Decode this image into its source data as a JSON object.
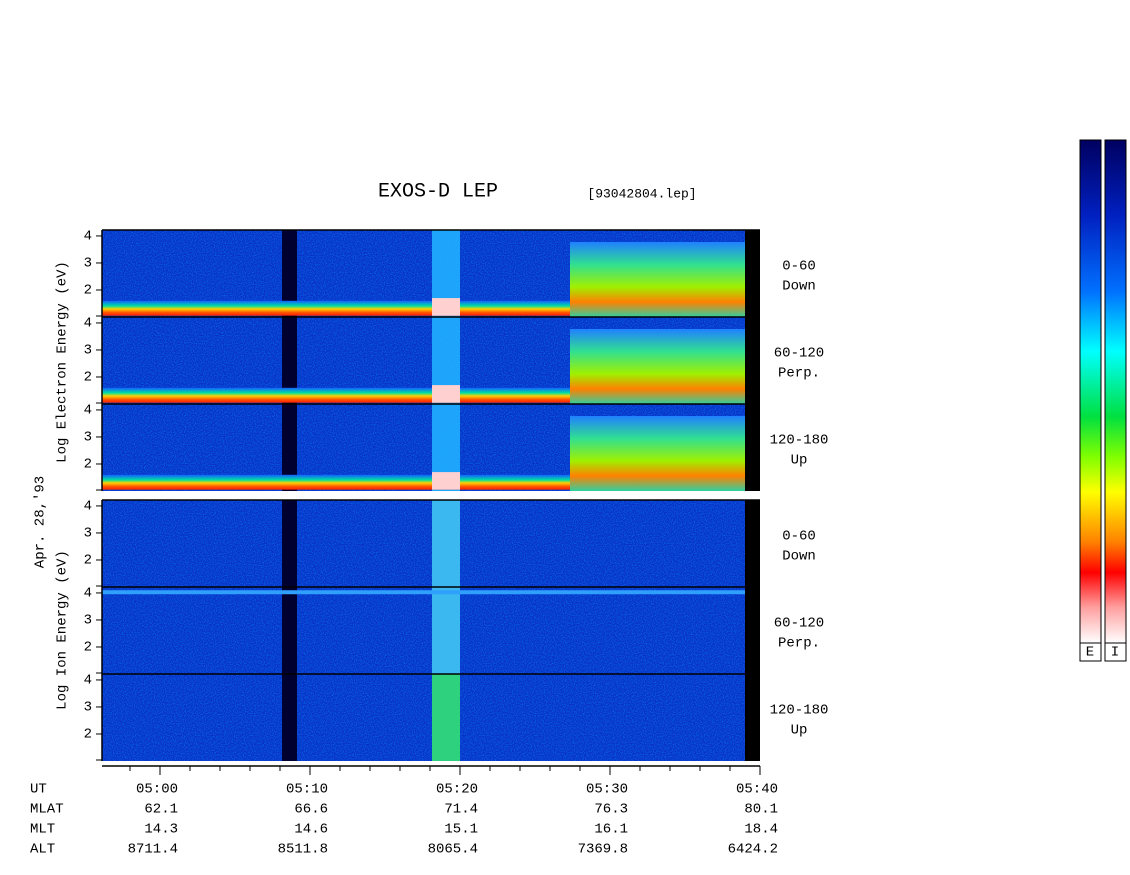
{
  "title": "EXOS-D LEP",
  "file": "[93042804.lep]",
  "date_label": "Apr. 28,'93",
  "electron": {
    "axis_label": "Log  Electron  Energy (eV)",
    "panels": [
      {
        "angle": "0-60",
        "direction": "Down"
      },
      {
        "angle": "60-120",
        "direction": "Perp."
      },
      {
        "angle": "120-180",
        "direction": "Up"
      }
    ]
  },
  "ion": {
    "axis_label": "Log  Ion  Energy (eV)",
    "panels": [
      {
        "angle": "0-60",
        "direction": "Down"
      },
      {
        "angle": "60-120",
        "direction": "Perp."
      },
      {
        "angle": "120-180",
        "direction": "Up"
      }
    ]
  },
  "yticks": [
    2,
    3,
    4
  ],
  "time_axis": {
    "label": "UT",
    "ticks": [
      "05:00",
      "05:10",
      "05:20",
      "05:30",
      "05:40"
    ]
  },
  "ephemeris": [
    {
      "label": "MLAT",
      "values": [
        62.1,
        66.6,
        71.4,
        76.3,
        80.1
      ]
    },
    {
      "label": "MLT",
      "values": [
        14.3,
        14.6,
        15.1,
        16.1,
        18.4
      ]
    },
    {
      "label": "ALT",
      "values": [
        8711.4,
        8511.8,
        8065.4,
        7369.8,
        6424.2
      ]
    }
  ],
  "colorbars": [
    "E",
    "I"
  ]
}
